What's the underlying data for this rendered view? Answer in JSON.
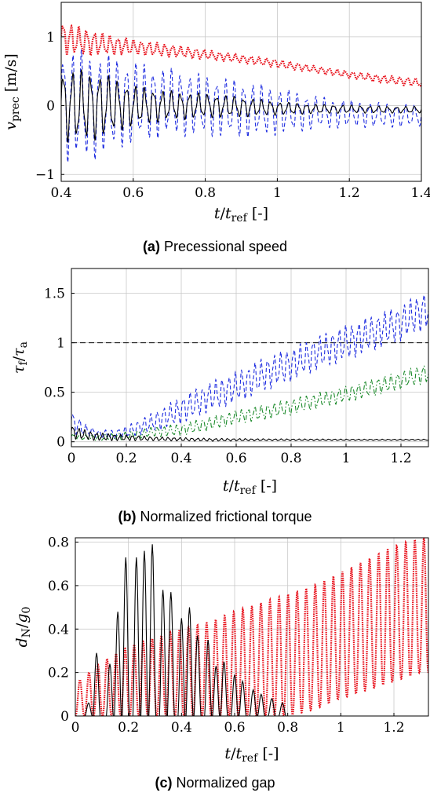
{
  "chart_data": [
    {
      "type": "line",
      "caption_tag": "(a)",
      "caption_text": "Precessional speed",
      "ylabel": "v",
      "ylabel_sub": "prec",
      "ylabel_unit": "[m/s]",
      "xlabel_main": "t",
      "xlabel_den": "t",
      "xlabel_den_sub": "ref",
      "xlabel_unit": "[-]",
      "xlim": [
        0.4,
        1.4
      ],
      "ylim": [
        -1.1,
        1.5
      ],
      "xticks": [
        0.4,
        0.6,
        0.8,
        1.0,
        1.2,
        1.4
      ],
      "xtick_labels": [
        "0.4",
        "0.6",
        "0.8",
        "1",
        "1.2",
        "1.4"
      ],
      "yticks": [
        -1,
        0,
        1
      ],
      "ytick_labels": [
        "−1",
        "0",
        "1"
      ],
      "grid": true,
      "series": [
        {
          "style": "dotted",
          "color": "#e8111b",
          "x": [
            0.4,
            0.5,
            0.6,
            0.7,
            0.8,
            0.9,
            1.0,
            1.1,
            1.2,
            1.3,
            1.4
          ],
          "center": [
            0.98,
            0.9,
            0.85,
            0.8,
            0.74,
            0.68,
            0.61,
            0.53,
            0.45,
            0.38,
            0.33
          ],
          "amp": [
            0.25,
            0.17,
            0.11,
            0.09,
            0.07,
            0.06,
            0.06,
            0.05,
            0.05,
            0.06,
            0.06
          ],
          "cycles": 46
        },
        {
          "style": "dashed",
          "color": "#1f2de0",
          "x": [
            0.4,
            0.5,
            0.6,
            0.7,
            0.8,
            0.9,
            1.0,
            1.1,
            1.2,
            1.3,
            1.4
          ],
          "center": [
            0.0,
            0.0,
            0.05,
            0.05,
            0.0,
            -0.05,
            -0.08,
            -0.1,
            -0.12,
            -0.14,
            -0.15
          ],
          "amp": [
            0.85,
            0.78,
            0.6,
            0.5,
            0.45,
            0.42,
            0.35,
            0.25,
            0.2,
            0.18,
            0.16
          ],
          "cycles": 40
        },
        {
          "style": "solid",
          "color": "#000000",
          "x": [
            0.4,
            0.5,
            0.6,
            0.7,
            0.8,
            0.9,
            1.0,
            1.1,
            1.2,
            1.3,
            1.4
          ],
          "center": [
            0.0,
            0.0,
            0.0,
            0.0,
            0.0,
            -0.02,
            -0.04,
            -0.05,
            -0.05,
            -0.06,
            -0.06
          ],
          "amp": [
            0.55,
            0.5,
            0.3,
            0.22,
            0.18,
            0.15,
            0.1,
            0.07,
            0.06,
            0.05,
            0.05
          ],
          "cycles": 40
        }
      ]
    },
    {
      "type": "line",
      "caption_tag": "(b)",
      "caption_text": "Normalized frictional torque",
      "ylabel": "τ",
      "ylabel_sub": "f",
      "ylabel_den": "τ",
      "ylabel_den_sub": "a",
      "xlabel_main": "t",
      "xlabel_den": "t",
      "xlabel_den_sub": "ref",
      "xlabel_unit": "[-]",
      "xlim": [
        0,
        1.3
      ],
      "ylim": [
        -0.05,
        1.75
      ],
      "xticks": [
        0,
        0.2,
        0.4,
        0.6,
        0.8,
        1.0,
        1.2
      ],
      "xtick_labels": [
        "0",
        "0.2",
        "0.4",
        "0.6",
        "0.8",
        "1",
        "1.2"
      ],
      "yticks": [
        0,
        0.5,
        1,
        1.5
      ],
      "ytick_labels": [
        "0",
        "0.5",
        "1",
        "1.5"
      ],
      "grid": true,
      "reference_line_y": 1,
      "series": [
        {
          "style": "dashed",
          "color": "#1f2de0",
          "x": [
            0,
            0.05,
            0.1,
            0.15,
            0.2,
            0.3,
            0.4,
            0.5,
            0.6,
            0.7,
            0.8,
            0.9,
            1.0,
            1.1,
            1.2,
            1.3
          ],
          "center": [
            0.2,
            0.12,
            0.08,
            0.07,
            0.1,
            0.2,
            0.32,
            0.45,
            0.55,
            0.68,
            0.78,
            0.9,
            1.0,
            1.1,
            1.2,
            1.35
          ],
          "amp": [
            0.12,
            0.06,
            0.04,
            0.05,
            0.06,
            0.1,
            0.14,
            0.15,
            0.16,
            0.17,
            0.17,
            0.17,
            0.18,
            0.18,
            0.18,
            0.2
          ],
          "cycles": 55
        },
        {
          "style": "dashdot",
          "color": "#1b8a2a",
          "x": [
            0,
            0.1,
            0.2,
            0.3,
            0.4,
            0.5,
            0.6,
            0.7,
            0.8,
            0.9,
            1.0,
            1.1,
            1.2,
            1.3
          ],
          "center": [
            0.05,
            0.04,
            0.06,
            0.1,
            0.12,
            0.18,
            0.25,
            0.3,
            0.35,
            0.42,
            0.48,
            0.55,
            0.62,
            0.7
          ],
          "amp": [
            0.03,
            0.03,
            0.04,
            0.05,
            0.06,
            0.07,
            0.07,
            0.08,
            0.08,
            0.08,
            0.08,
            0.09,
            0.09,
            0.1
          ],
          "cycles": 55
        },
        {
          "style": "solid",
          "color": "#000000",
          "x": [
            0,
            0.05,
            0.1,
            0.2,
            0.3,
            0.5,
            0.7,
            0.9,
            1.1,
            1.3
          ],
          "center": [
            0.1,
            0.07,
            0.05,
            0.04,
            0.03,
            0.02,
            0.02,
            0.02,
            0.02,
            0.02
          ],
          "amp": [
            0.07,
            0.05,
            0.04,
            0.03,
            0.02,
            0.015,
            0.01,
            0.008,
            0.006,
            0.006
          ],
          "cycles": 60
        }
      ]
    },
    {
      "type": "line",
      "caption_tag": "(c)",
      "caption_text": "Normalized gap",
      "ylabel": "d",
      "ylabel_sub": "N",
      "ylabel_den": "g",
      "ylabel_den_sub": "0",
      "xlabel_main": "t",
      "xlabel_den": "t",
      "xlabel_den_sub": "ref",
      "xlabel_unit": "[-]",
      "xlim": [
        0,
        1.33
      ],
      "ylim": [
        0,
        0.82
      ],
      "xticks": [
        0,
        0.2,
        0.4,
        0.6,
        0.8,
        1.0,
        1.2
      ],
      "xtick_labels": [
        "0",
        "0.2",
        "0.4",
        "0.6",
        "0.8",
        "1",
        "1.2"
      ],
      "yticks": [
        0,
        0.2,
        0.4,
        0.6,
        0.8
      ],
      "ytick_labels": [
        "0",
        "0.2",
        "0.4",
        "0.6",
        "0.8"
      ],
      "grid": true,
      "series": [
        {
          "style": "dotted",
          "color": "#e8111b",
          "x": [
            0,
            0.1,
            0.2,
            0.3,
            0.4,
            0.5,
            0.6,
            0.7,
            0.8,
            0.9,
            1.0,
            1.1,
            1.2,
            1.3,
            1.33
          ],
          "lo": [
            0,
            0,
            0,
            0,
            0,
            0,
            0,
            0,
            0,
            0.03,
            0.08,
            0.12,
            0.16,
            0.2,
            0.2
          ],
          "peak": [
            0.15,
            0.25,
            0.32,
            0.36,
            0.4,
            0.43,
            0.48,
            0.52,
            0.56,
            0.6,
            0.66,
            0.72,
            0.78,
            0.82,
            0.82
          ],
          "cycles": 39
        },
        {
          "style": "solid",
          "color": "#000000",
          "peaks": [
            [
              0.05,
              0.06
            ],
            [
              0.08,
              0.29
            ],
            [
              0.13,
              0.24
            ],
            [
              0.16,
              0.48
            ],
            [
              0.19,
              0.73
            ],
            [
              0.23,
              0.73
            ],
            [
              0.26,
              0.76
            ],
            [
              0.29,
              0.79
            ],
            [
              0.33,
              0.58
            ],
            [
              0.36,
              0.57
            ],
            [
              0.4,
              0.45
            ],
            [
              0.43,
              0.5
            ],
            [
              0.46,
              0.37
            ],
            [
              0.5,
              0.35
            ],
            [
              0.53,
              0.23
            ],
            [
              0.56,
              0.25
            ],
            [
              0.6,
              0.19
            ],
            [
              0.63,
              0.16
            ],
            [
              0.67,
              0.12
            ],
            [
              0.7,
              0.1
            ],
            [
              0.74,
              0.08
            ],
            [
              0.78,
              0.06
            ]
          ]
        }
      ]
    }
  ]
}
